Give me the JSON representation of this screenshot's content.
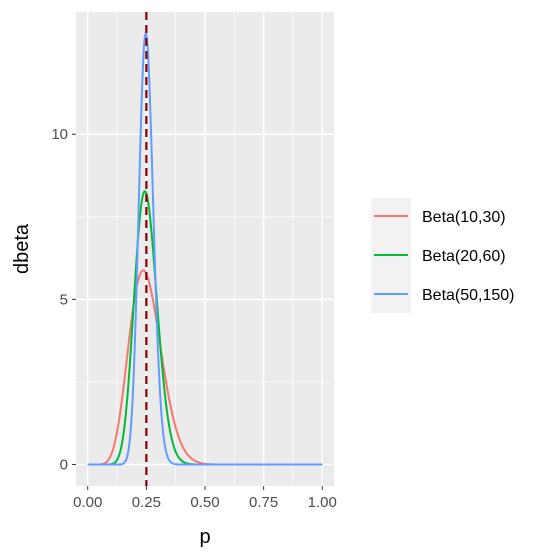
{
  "chart_data": {
    "type": "line",
    "xlabel": "p",
    "ylabel": "dbeta",
    "xlim": [
      -0.05,
      1.05
    ],
    "ylim": [
      -0.65,
      13.7
    ],
    "x_ticks": [
      0,
      0.25,
      0.5,
      0.75,
      1
    ],
    "x_tick_labels": [
      "0.00",
      "0.25",
      "0.50",
      "0.75",
      "1.00"
    ],
    "y_ticks": [
      0,
      5,
      10
    ],
    "y_tick_labels": [
      "0",
      "5",
      "10"
    ],
    "grid": true,
    "legend_position": "right",
    "reference_line": {
      "x": 0.25,
      "style": "dashed",
      "color": "#8b0000"
    },
    "series": [
      {
        "name": "Beta(10,30)",
        "alpha": 10,
        "beta": 30,
        "color": "#f8766d",
        "peak": [
          0.2368,
          5.9
        ]
      },
      {
        "name": "Beta(20,60)",
        "alpha": 20,
        "beta": 60,
        "color": "#00ba38",
        "peak": [
          0.2436,
          8.3
        ]
      },
      {
        "name": "Beta(50,150)",
        "alpha": 50,
        "beta": 150,
        "color": "#619cff",
        "peak": [
          0.2475,
          13.0
        ]
      }
    ]
  }
}
